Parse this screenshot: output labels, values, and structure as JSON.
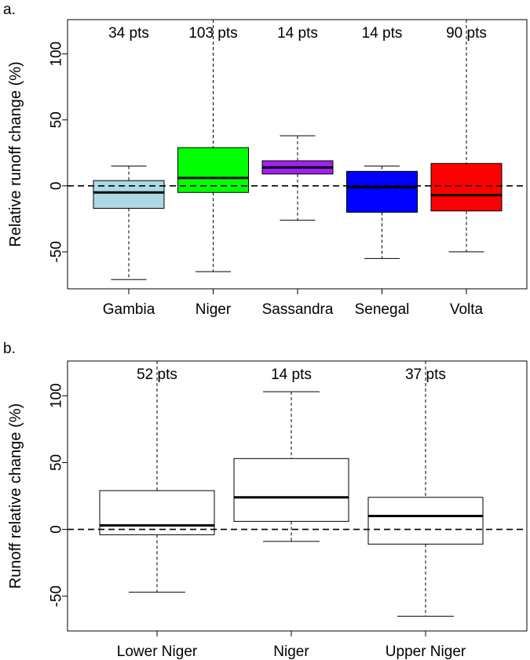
{
  "panels": [
    {
      "letter": "a."
    },
    {
      "letter": "b."
    }
  ],
  "chart_data": [
    {
      "type": "boxplot",
      "panel": "a.",
      "title": "",
      "xlabel": "",
      "ylabel": "Relative runoff change (%)",
      "ylim": [
        -78,
        126
      ],
      "yticks": [
        -50,
        0,
        50,
        100
      ],
      "grid": false,
      "legend": "none",
      "reference_line": {
        "y": 0,
        "style": "dashed"
      },
      "categories": [
        "Gambia",
        "Niger",
        "Sassandra",
        "Senegal",
        "Volta"
      ],
      "counts": [
        "34 pts",
        "103 pts",
        "14 pts",
        "14 pts",
        "90 pts"
      ],
      "boxes": [
        {
          "category": "Gambia",
          "min": -71,
          "q1": -17,
          "median": -5,
          "q3": 4,
          "max": 15,
          "color": "#add8e6"
        },
        {
          "category": "Niger",
          "min": -65,
          "q1": -5,
          "median": 6,
          "q3": 29,
          "max": 126,
          "color": "#00ff00"
        },
        {
          "category": "Sassandra",
          "min": -26,
          "q1": 9,
          "median": 14,
          "q3": 19,
          "max": 38,
          "color": "#a020f0"
        },
        {
          "category": "Senegal",
          "min": -55,
          "q1": -20,
          "median": -1,
          "q3": 11,
          "max": 15,
          "color": "#0000ff"
        },
        {
          "category": "Volta",
          "min": -50,
          "q1": -19,
          "median": -7,
          "q3": 17,
          "max": 126,
          "color": "#ff0000"
        }
      ]
    },
    {
      "type": "boxplot",
      "panel": "b.",
      "title": "",
      "xlabel": "",
      "ylabel": "Runoff relative change (%)",
      "ylim": [
        -76,
        126
      ],
      "yticks": [
        -50,
        0,
        50,
        100
      ],
      "grid": false,
      "legend": "none",
      "reference_line": {
        "y": 0,
        "style": "dashed"
      },
      "categories": [
        "Lower Niger",
        "Niger",
        "Upper Niger"
      ],
      "counts": [
        "52 pts",
        "14 pts",
        "37 pts"
      ],
      "boxes": [
        {
          "category": "Lower Niger",
          "min": -47,
          "q1": -4,
          "median": 3,
          "q3": 29,
          "max": 126,
          "color": "#ffffff"
        },
        {
          "category": "Niger",
          "min": -9,
          "q1": 6,
          "median": 24,
          "q3": 53,
          "max": 103,
          "color": "#ffffff"
        },
        {
          "category": "Upper Niger",
          "min": -65,
          "q1": -11,
          "median": 10,
          "q3": 24,
          "max": 126,
          "color": "#ffffff"
        }
      ]
    }
  ]
}
